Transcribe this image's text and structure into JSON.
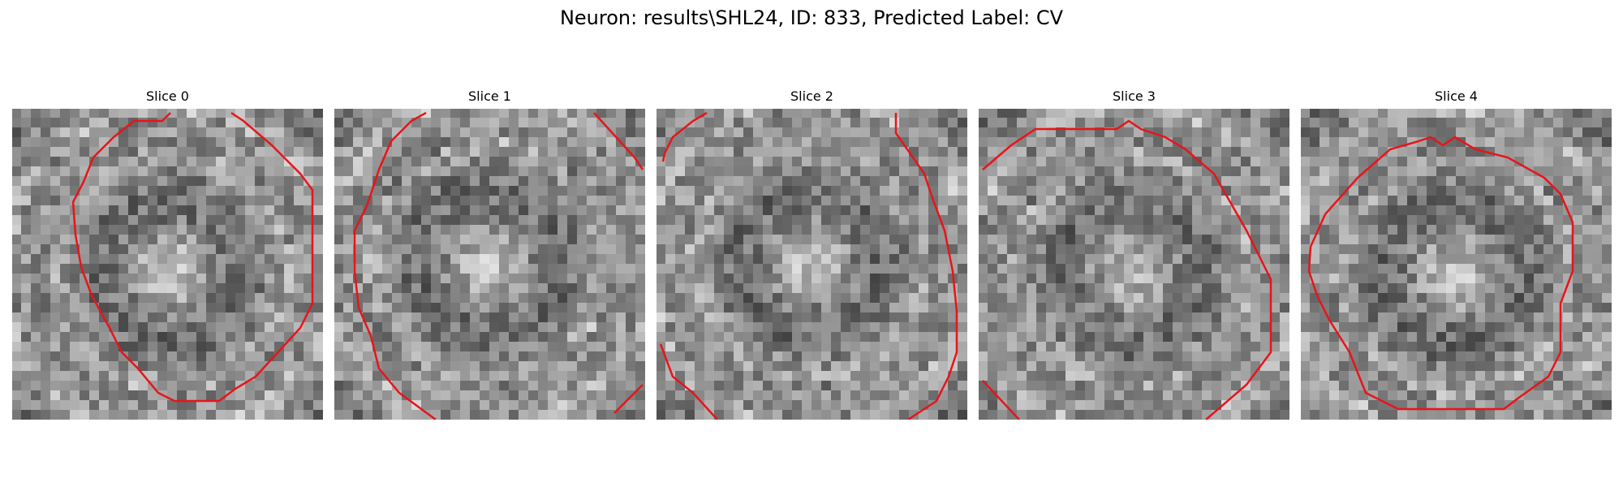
{
  "figure": {
    "title": "Neuron: results\\SHL24, ID: 833, Predicted Label: CV"
  },
  "contour_color": "#e8141a",
  "panels": [
    {
      "label": "Slice 0"
    },
    {
      "label": "Slice 1"
    },
    {
      "label": "Slice 2"
    },
    {
      "label": "Slice 3"
    },
    {
      "label": "Slice 4"
    }
  ]
}
